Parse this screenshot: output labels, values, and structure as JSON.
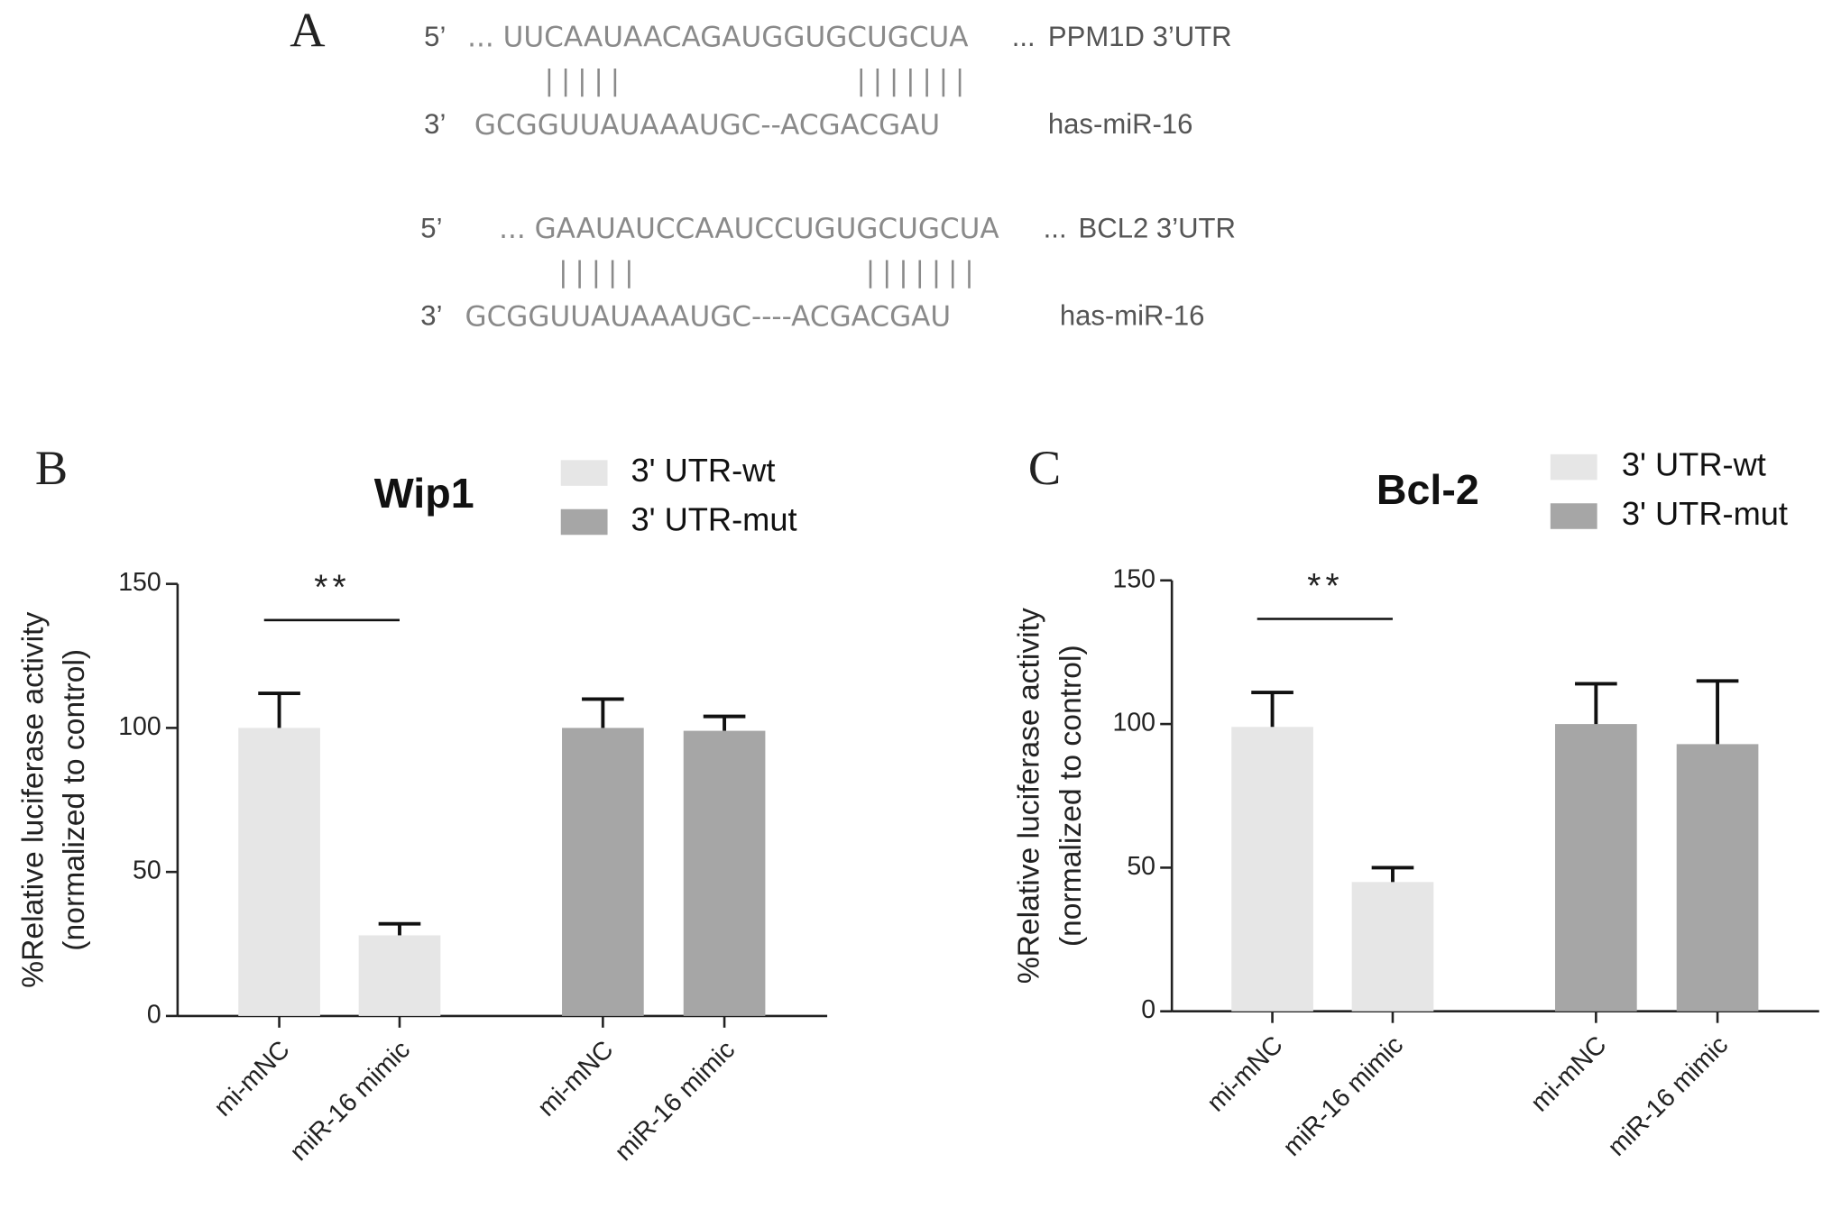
{
  "panel_a": {
    "label": "A",
    "rows": [
      {
        "end": "5’",
        "seq": "... UUCAAUAACAGAUGGUGCUGCUA",
        "dots": "...",
        "name": "PPM1D 3’UTR"
      },
      {
        "pairs": [
          "|||||",
          "|||||||"
        ]
      },
      {
        "end": "3’",
        "seq": "GCGGUUAUAAAUGC--ACGACGAU",
        "name": "has-miR-16"
      },
      {
        "end": "5’",
        "seq": "... GAAUAUCCAAUCCUGUGCUGCUA",
        "dots": "...",
        "name": "BCL2 3’UTR"
      },
      {
        "pairs": [
          "|||||",
          "|||||||"
        ]
      },
      {
        "end": "3’",
        "seq": "GCGGUUAUAAAUGC----ACGACGAU",
        "name": "has-miR-16"
      }
    ]
  },
  "chart_data": [
    {
      "type": "bar",
      "panel": "B",
      "title": "Wip1",
      "ylabel": [
        "%Relative luciferase activity",
        "(normalized to control)"
      ],
      "categories": [
        "mi-mNC",
        "miR-16 mimic",
        "mi-mNC",
        "miR-16 mimic"
      ],
      "series": [
        {
          "name": "3' UTR-wt",
          "color": "#e6e6e6",
          "values": [
            100,
            28,
            null,
            null
          ],
          "errors": [
            12,
            4,
            null,
            null
          ]
        },
        {
          "name": "3' UTR-mut",
          "color": "#a6a6a6",
          "values": [
            null,
            null,
            100,
            99
          ],
          "errors": [
            null,
            null,
            10,
            5
          ]
        }
      ],
      "ylim": [
        0,
        150
      ],
      "yticks": [
        0,
        50,
        100,
        150
      ],
      "annotation": {
        "text": "**",
        "from": 0,
        "to": 1
      }
    },
    {
      "type": "bar",
      "panel": "C",
      "title": "Bcl-2",
      "ylabel": [
        "%Relative luciferase activity",
        "(normalized to control)"
      ],
      "categories": [
        "mi-mNC",
        "miR-16 mimic",
        "mi-mNC",
        "miR-16 mimic"
      ],
      "series": [
        {
          "name": "3' UTR-wt",
          "color": "#e6e6e6",
          "values": [
            99,
            45,
            null,
            null
          ],
          "errors": [
            12,
            5,
            null,
            null
          ]
        },
        {
          "name": "3' UTR-mut",
          "color": "#a6a6a6",
          "values": [
            null,
            null,
            100,
            93
          ],
          "errors": [
            null,
            null,
            14,
            22
          ]
        }
      ],
      "ylim": [
        0,
        150
      ],
      "yticks": [
        0,
        50,
        100,
        150
      ],
      "annotation": {
        "text": "**",
        "from": 0,
        "to": 1
      }
    }
  ]
}
